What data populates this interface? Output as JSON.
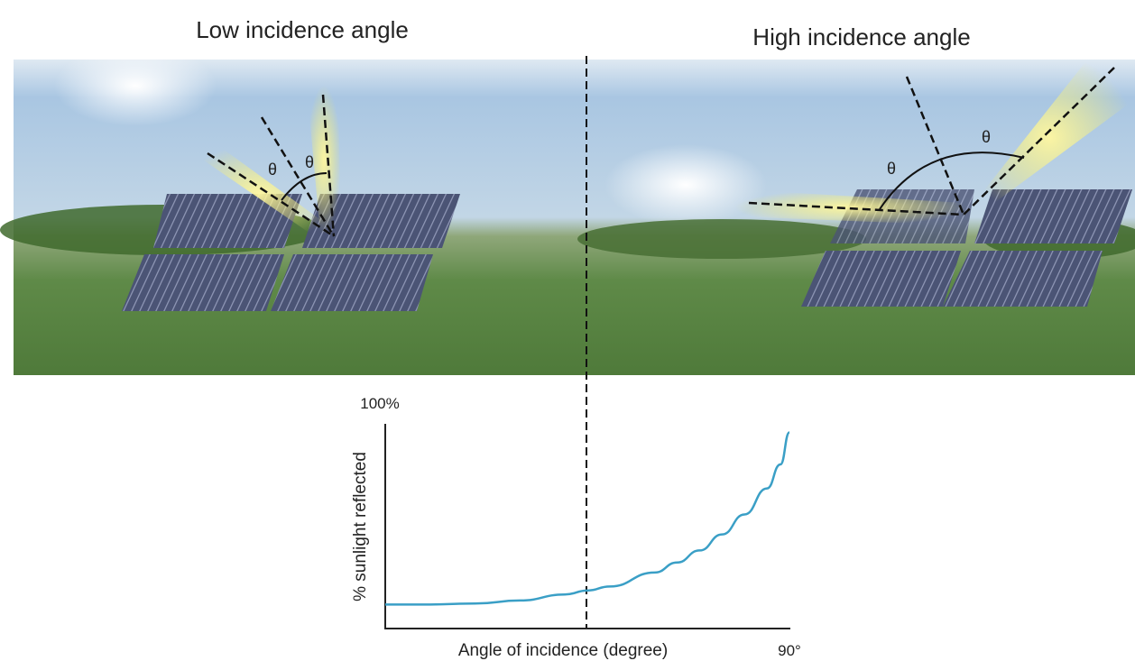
{
  "panels": [
    {
      "title": "Low incidence angle",
      "angle_labels": [
        "θ",
        "θ"
      ]
    },
    {
      "title": "High incidence angle",
      "angle_labels": [
        "θ",
        "θ"
      ]
    }
  ],
  "chart_data": {
    "type": "line",
    "xlabel": "Angle of incidence (degree)",
    "ylabel": "% sunlight reflected",
    "x": [
      0,
      10,
      20,
      30,
      40,
      45,
      50,
      60,
      65,
      70,
      75,
      80,
      85,
      88,
      90
    ],
    "series": [
      {
        "color": "#3a9fc6",
        "values": [
          12,
          12,
          12.5,
          14,
          17,
          19,
          21,
          28,
          33,
          39,
          47,
          57,
          70,
          82,
          98
        ]
      }
    ],
    "xlim": [
      0,
      90
    ],
    "ylim": [
      0,
      100
    ],
    "xticks": [
      {
        "value": 90,
        "label": "90°"
      }
    ],
    "yticks": [
      {
        "value": 100,
        "label": "100%"
      }
    ]
  }
}
